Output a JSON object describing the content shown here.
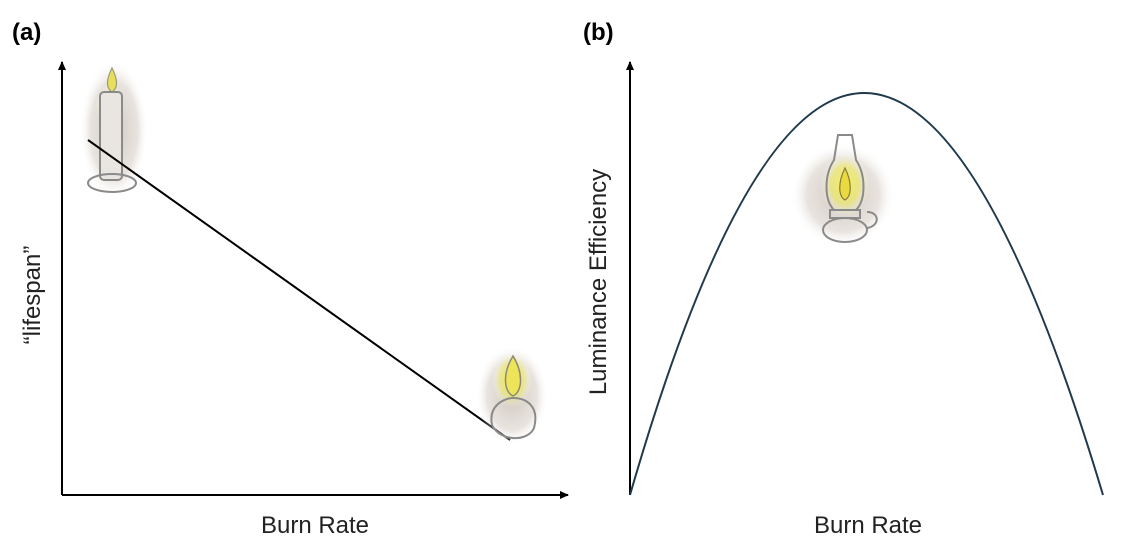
{
  "panels": [
    {
      "label": "(a)",
      "x_label": "Burn Rate",
      "y_label": "“lifespan”"
    },
    {
      "label": "(b)",
      "x_label": "Burn Rate",
      "y_label": "Luminance Efficiency"
    }
  ]
}
